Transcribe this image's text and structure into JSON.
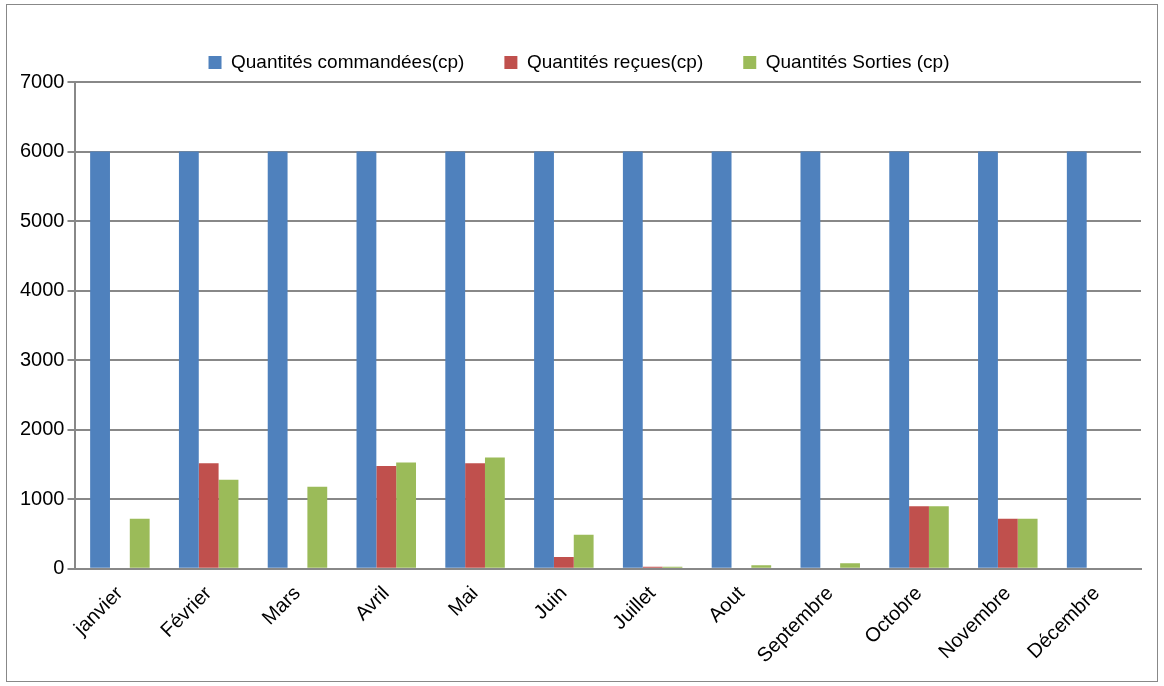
{
  "chart_data": {
    "type": "bar",
    "categories": [
      "janvier",
      "Février",
      "Mars",
      "Avril",
      "Mai",
      "Juin",
      "Juillet",
      "Aout",
      "Septembre",
      "Octobre",
      "Novembre",
      "Décembre"
    ],
    "series": [
      {
        "name": "Quantités commandées(cp)",
        "color": "#4f81bd",
        "values": [
          6000,
          6000,
          6000,
          6000,
          6000,
          6000,
          6000,
          6000,
          6000,
          6000,
          6000,
          6000
        ]
      },
      {
        "name": "Quantités reçues(cp)",
        "color": "#c0504d",
        "values": [
          0,
          1520,
          0,
          1480,
          1520,
          170,
          30,
          0,
          0,
          900,
          720,
          0
        ]
      },
      {
        "name": "Quantités Sorties (cp)",
        "color": "#9bbb59",
        "values": [
          720,
          1280,
          1180,
          1530,
          1600,
          490,
          30,
          50,
          80,
          900,
          720,
          0
        ]
      }
    ],
    "ylim": [
      0,
      7000
    ],
    "yticks": [
      0,
      1000,
      2000,
      3000,
      4000,
      5000,
      6000,
      7000
    ],
    "grid": "y",
    "legend": "top"
  }
}
